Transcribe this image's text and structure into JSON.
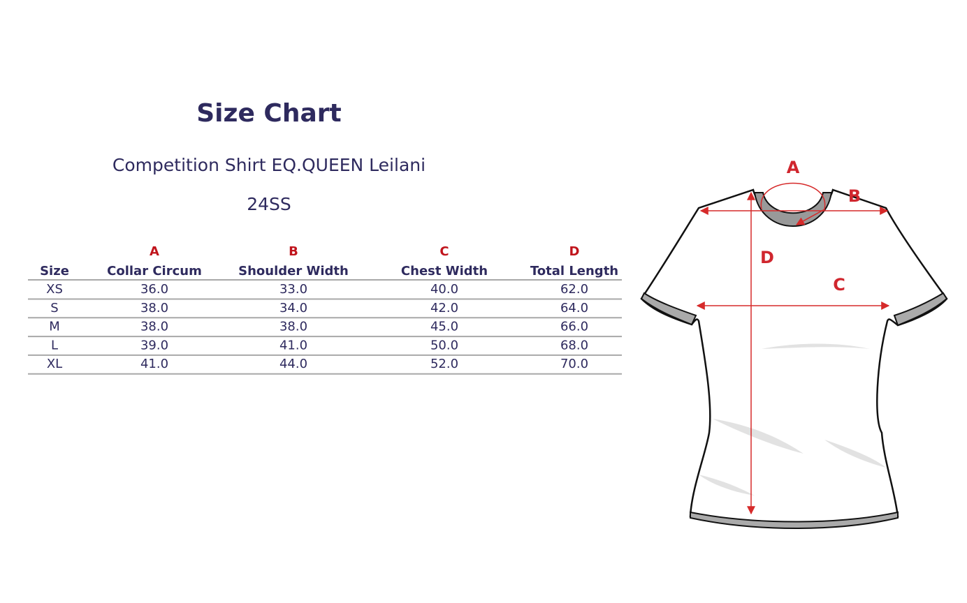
{
  "header": {
    "title": "Size Chart",
    "subtitle": "Competition Shirt EQ.QUEEN Leilani",
    "season": "24SS"
  },
  "table": {
    "letters": [
      "A",
      "B",
      "C",
      "D"
    ],
    "columns": [
      "Size",
      "Collar Circum",
      "Shoulder Width",
      "Chest Width",
      "Total Length"
    ],
    "rows": [
      [
        "XS",
        "36.0",
        "33.0",
        "40.0",
        "62.0"
      ],
      [
        "S",
        "38.0",
        "34.0",
        "42.0",
        "64.0"
      ],
      [
        "M",
        "38.0",
        "38.0",
        "45.0",
        "66.0"
      ],
      [
        "L",
        "39.0",
        "41.0",
        "50.0",
        "68.0"
      ],
      [
        "XL",
        "41.0",
        "44.0",
        "52.0",
        "70.0"
      ]
    ]
  },
  "diagram": {
    "labels": [
      "A",
      "B",
      "C",
      "D"
    ]
  }
}
